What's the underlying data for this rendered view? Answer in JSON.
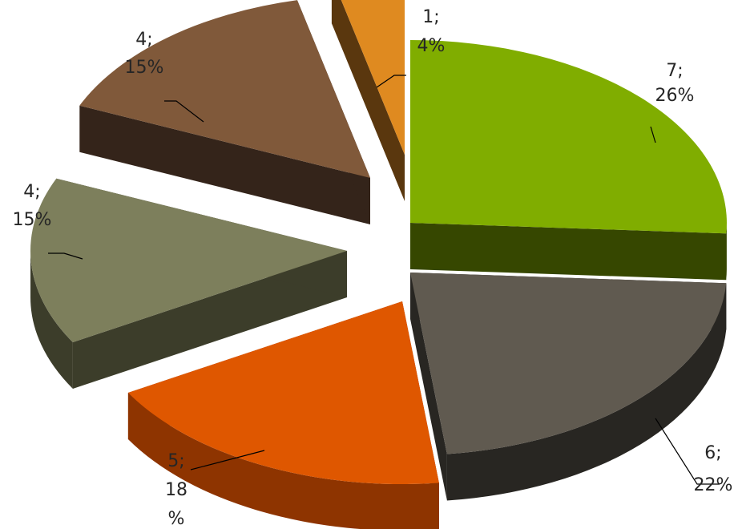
{
  "chart_data": {
    "type": "pie",
    "variant": "3d-exploded",
    "slices": [
      {
        "value": 7,
        "percent": "26%",
        "label_lines": [
          "7;",
          "26%"
        ],
        "colors": {
          "top": "#80AD00",
          "side": "#364700"
        }
      },
      {
        "value": 6,
        "percent": "22%",
        "label_lines": [
          "6;",
          "22%"
        ],
        "colors": {
          "top": "#605A50",
          "side": "#282622"
        }
      },
      {
        "value": 5,
        "percent": "18%",
        "label_lines": [
          "5;",
          "18",
          "%"
        ],
        "colors": {
          "top": "#DF5700",
          "side": "#8E3400"
        }
      },
      {
        "value": 4,
        "percent": "15%",
        "label_lines": [
          "4;",
          "15%"
        ],
        "colors": {
          "top": "#7D7F5C",
          "side": "#3C3D2A"
        }
      },
      {
        "value": 4,
        "percent": "15%",
        "label_lines": [
          "4;",
          "15%"
        ],
        "colors": {
          "top": "#80593A",
          "side": "#34241A"
        }
      },
      {
        "value": 1,
        "percent": "4%",
        "label_lines": [
          "1;",
          "4%"
        ],
        "colors": {
          "top": "#DF8A20",
          "side": "#5A370E"
        }
      }
    ]
  }
}
